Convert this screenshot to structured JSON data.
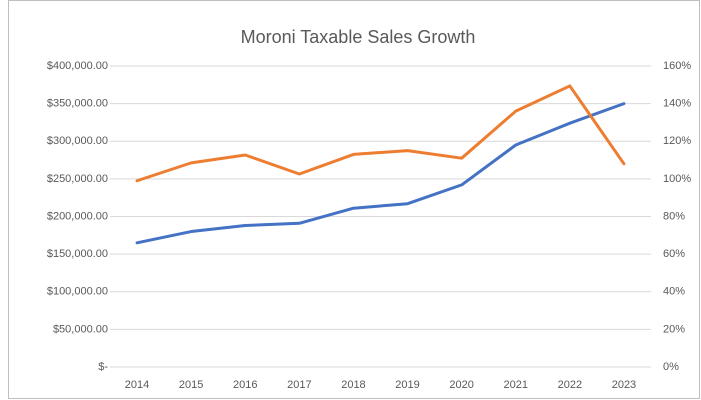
{
  "chart_data": {
    "type": "line",
    "title": "Moroni Taxable Sales Growth",
    "categories": [
      "2014",
      "2015",
      "2016",
      "2017",
      "2018",
      "2019",
      "2020",
      "2021",
      "2022",
      "2023"
    ],
    "series": [
      {
        "color": "#4472c4",
        "values": [
          165000,
          180000,
          188000,
          191000,
          211000,
          217000,
          242000,
          295000,
          324000,
          350000
        ]
      },
      {
        "color": "#ed7d31",
        "axis": "y2",
        "values": [
          99,
          108.5,
          112.7,
          102.6,
          113,
          115,
          111,
          136,
          149.4,
          108
        ]
      }
    ],
    "ylim": [
      0,
      400000
    ],
    "yticks": [
      {
        "value": 0,
        "label": "$-"
      },
      {
        "value": 50000,
        "label": "$50,000.00"
      },
      {
        "value": 100000,
        "label": "$100,000.00"
      },
      {
        "value": 150000,
        "label": "$150,000.00"
      },
      {
        "value": 200000,
        "label": "$200,000.00"
      },
      {
        "value": 250000,
        "label": "$250,000.00"
      },
      {
        "value": 300000,
        "label": "$300,000.00"
      },
      {
        "value": 350000,
        "label": "$350,000.00"
      },
      {
        "value": 400000,
        "label": "$400,000.00"
      }
    ],
    "y2lim": [
      0,
      160
    ],
    "y2ticks": [
      {
        "value": 0,
        "label": "0%"
      },
      {
        "value": 20,
        "label": "20%"
      },
      {
        "value": 40,
        "label": "40%"
      },
      {
        "value": 60,
        "label": "60%"
      },
      {
        "value": 80,
        "label": "80%"
      },
      {
        "value": 100,
        "label": "100%"
      },
      {
        "value": 120,
        "label": "120%"
      },
      {
        "value": 140,
        "label": "140%"
      },
      {
        "value": 160,
        "label": "160%"
      }
    ],
    "grid": true
  }
}
